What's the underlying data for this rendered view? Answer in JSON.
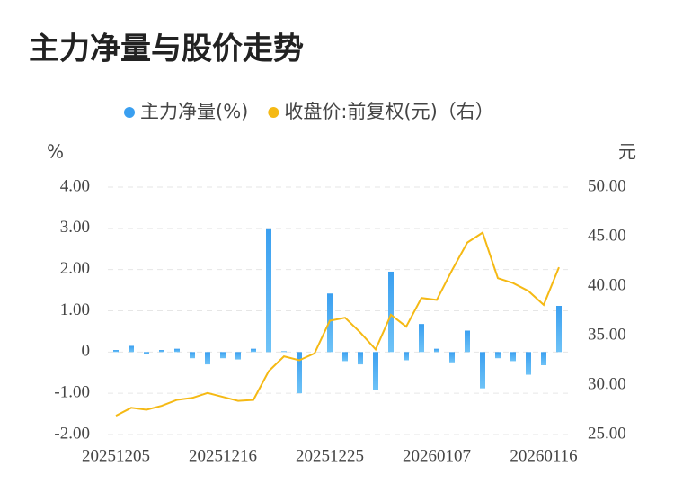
{
  "chart_data": {
    "type": "bar+line",
    "title": "主力净量与股价走势",
    "y_label": "%",
    "y2_label": "元",
    "categories": [
      "20251205",
      null,
      null,
      null,
      null,
      null,
      null,
      "20251216",
      null,
      null,
      null,
      null,
      null,
      null,
      "20251225",
      null,
      null,
      null,
      null,
      null,
      null,
      "20260107",
      null,
      null,
      null,
      null,
      null,
      null,
      "20260116",
      null
    ],
    "series": [
      {
        "name": "主力净量(%)",
        "type": "bar",
        "color": "#3a9ff0",
        "axis": "y",
        "values": [
          0.05,
          0.15,
          -0.05,
          0.05,
          0.08,
          -0.15,
          -0.3,
          -0.15,
          -0.18,
          0.08,
          3.0,
          0.02,
          -1.0,
          0,
          1.42,
          -0.22,
          -0.3,
          -0.92,
          1.95,
          -0.2,
          0.68,
          0.08,
          -0.25,
          0.52,
          -0.88,
          -0.15,
          -0.22,
          -0.55,
          -0.32,
          1.12
        ]
      },
      {
        "name": "收盘价:前复权(元)（右）",
        "type": "line",
        "color": "#f5b914",
        "axis": "y2",
        "values": [
          26.9,
          27.7,
          27.5,
          27.9,
          28.5,
          28.7,
          29.2,
          28.8,
          28.4,
          28.5,
          31.4,
          32.9,
          32.5,
          33.2,
          36.5,
          36.8,
          35.3,
          33.6,
          37.1,
          35.9,
          38.8,
          38.6,
          41.6,
          44.4,
          45.4,
          40.8,
          40.3,
          39.5,
          38.1,
          41.9
        ]
      }
    ],
    "ylim": [
      -2,
      4
    ],
    "yticks": [
      {
        "value": -2,
        "label": "-2.00"
      },
      {
        "value": -1,
        "label": "-1.00"
      },
      0,
      {
        "value": 1,
        "label": "1.00"
      },
      {
        "value": 2,
        "label": "2.00"
      },
      {
        "value": 3,
        "label": "3.00"
      },
      {
        "value": 4,
        "label": "4.00"
      }
    ],
    "y2lim": [
      25,
      50
    ],
    "y2ticks": [
      {
        "value": 25,
        "label": "25.00"
      },
      {
        "value": 30,
        "label": "30.00"
      },
      {
        "value": 35,
        "label": "35.00"
      },
      {
        "value": 40,
        "label": "40.00"
      },
      {
        "value": 45,
        "label": "45.00"
      },
      {
        "value": 50,
        "label": "50.00"
      }
    ],
    "grid": true,
    "legend": "top"
  }
}
